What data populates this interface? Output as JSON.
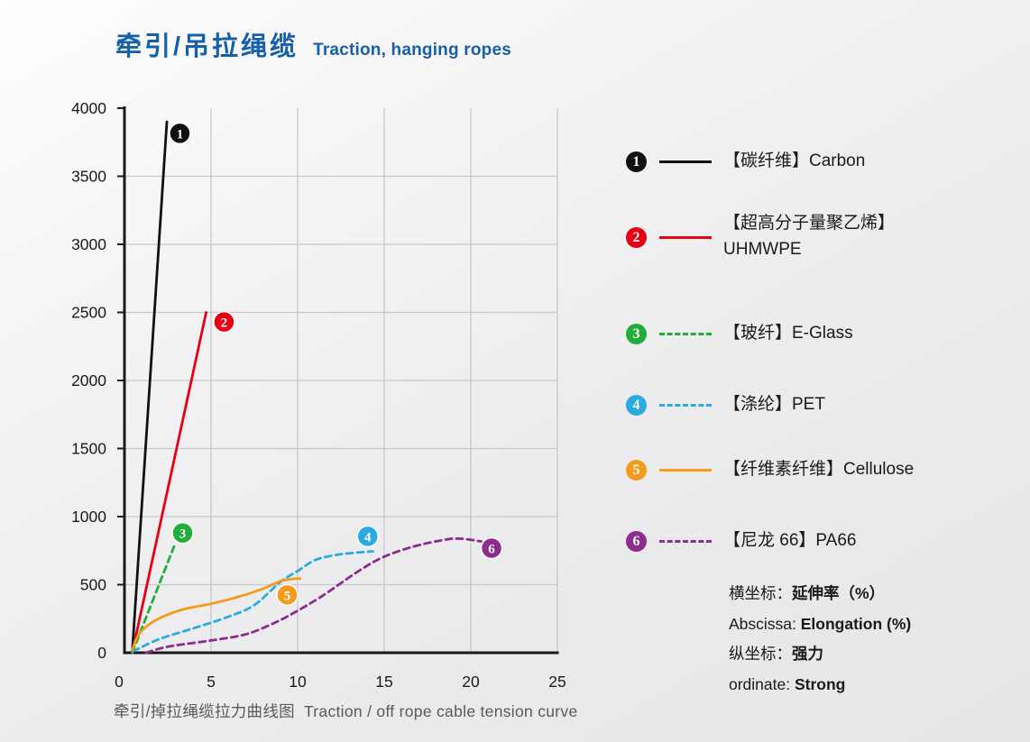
{
  "title": {
    "zh": "牵引/吊拉绳缆",
    "en": "Traction, hanging ropes",
    "color": "#1660ab"
  },
  "caption": {
    "zh": "牵引/掉拉绳缆拉力曲线图",
    "en": "Traction / off rope cable tension curve"
  },
  "legend": {
    "items": [
      {
        "number": "1",
        "color": "#111111",
        "line_style": "solid",
        "label": "【碳纤维】Carbon",
        "label2": ""
      },
      {
        "number": "2",
        "color": "#e60012",
        "line_style": "solid",
        "label": "【超高分子量聚乙烯】",
        "label2": "UHMWPE"
      },
      {
        "number": "3",
        "color": "#22ac38",
        "line_style": "dashed",
        "label": "【玻纤】E-Glass",
        "label2": ""
      },
      {
        "number": "4",
        "color": "#29abe2",
        "line_style": "dashed",
        "label": "【涤纶】PET",
        "label2": ""
      },
      {
        "number": "5",
        "color": "#f39b1d",
        "line_style": "solid",
        "label": "【纤维素纤维】Cellulose",
        "label2": ""
      },
      {
        "number": "6",
        "color": "#8c2c8c",
        "line_style": "dashed",
        "label": "【尼龙 66】PA66",
        "label2": ""
      }
    ]
  },
  "axis_notes": [
    {
      "plain": "横坐标：",
      "bold": "延伸率（%）"
    },
    {
      "plain": "Abscissa: ",
      "bold": "Elongation (%)"
    },
    {
      "plain": "纵坐标：",
      "bold": "强力"
    },
    {
      "plain": "ordinate: ",
      "bold": "Strong"
    }
  ],
  "chart_data": {
    "type": "line",
    "title": "牵引/掉拉绳缆拉力曲线图 Traction / off rope cable tension curve",
    "xlabel": "延伸率 Elongation (%)",
    "ylabel": "强力 Strong",
    "xlim": [
      0,
      25
    ],
    "ylim": [
      0,
      4000
    ],
    "x_ticks": [
      0,
      5,
      10,
      15,
      20,
      25
    ],
    "y_ticks": [
      0,
      500,
      1000,
      1500,
      2000,
      2500,
      3000,
      3500,
      4000
    ],
    "grid": true,
    "legend_position": "right",
    "axis_color": "#1a1a1a",
    "grid_color": "#c8c8c9",
    "series": [
      {
        "id": "1",
        "name": "碳纤维 Carbon",
        "color": "#111111",
        "style": "solid",
        "points": [
          [
            0.45,
            0
          ],
          [
            2.45,
            3900
          ]
        ],
        "badge": [
          3.2,
          3815
        ]
      },
      {
        "id": "2",
        "name": "超高分子量聚乙烯 UHMWPE",
        "color": "#e60012",
        "style": "solid",
        "points": [
          [
            0.45,
            0
          ],
          [
            4.72,
            2500
          ]
        ],
        "badge": [
          5.75,
          2430
        ]
      },
      {
        "id": "3",
        "name": "玻纤 E-Glass",
        "color": "#22ac38",
        "style": "dashed",
        "points": [
          [
            0.45,
            0
          ],
          [
            2.86,
            780
          ]
        ],
        "badge": [
          3.36,
          880
        ]
      },
      {
        "id": "4",
        "name": "涤纶 PET",
        "color": "#29abe2",
        "style": "dashed",
        "points": [
          [
            0.5,
            10
          ],
          [
            2,
            100
          ],
          [
            4,
            180
          ],
          [
            6,
            265
          ],
          [
            7.5,
            350
          ],
          [
            9,
            520
          ],
          [
            10,
            600
          ],
          [
            11,
            680
          ],
          [
            12.2,
            718
          ],
          [
            13.2,
            733
          ],
          [
            14.35,
            745
          ]
        ],
        "badge": [
          14.05,
          855
        ]
      },
      {
        "id": "5",
        "name": "纤维素纤维 Cellulose",
        "color": "#f39b1d",
        "style": "solid",
        "points": [
          [
            0.45,
            20
          ],
          [
            0.8,
            130
          ],
          [
            1.5,
            215
          ],
          [
            2.5,
            280
          ],
          [
            3.5,
            322
          ],
          [
            5,
            360
          ],
          [
            6.5,
            408
          ],
          [
            8,
            470
          ],
          [
            9,
            525
          ],
          [
            9.7,
            542
          ],
          [
            10.15,
            545
          ]
        ],
        "badge": [
          9.4,
          425
        ]
      },
      {
        "id": "6",
        "name": "尼龙66 PA66",
        "color": "#8c2c8c",
        "style": "dashed",
        "points": [
          [
            1.25,
            0
          ],
          [
            2,
            30
          ],
          [
            3,
            55
          ],
          [
            5,
            90
          ],
          [
            7,
            135
          ],
          [
            8.5,
            210
          ],
          [
            9.6,
            280
          ],
          [
            11.4,
            415
          ],
          [
            13.4,
            590
          ],
          [
            14.9,
            700
          ],
          [
            16.6,
            777
          ],
          [
            18.4,
            828
          ],
          [
            19.4,
            838
          ],
          [
            20.6,
            818
          ]
        ],
        "badge": [
          21.2,
          768
        ]
      }
    ]
  }
}
